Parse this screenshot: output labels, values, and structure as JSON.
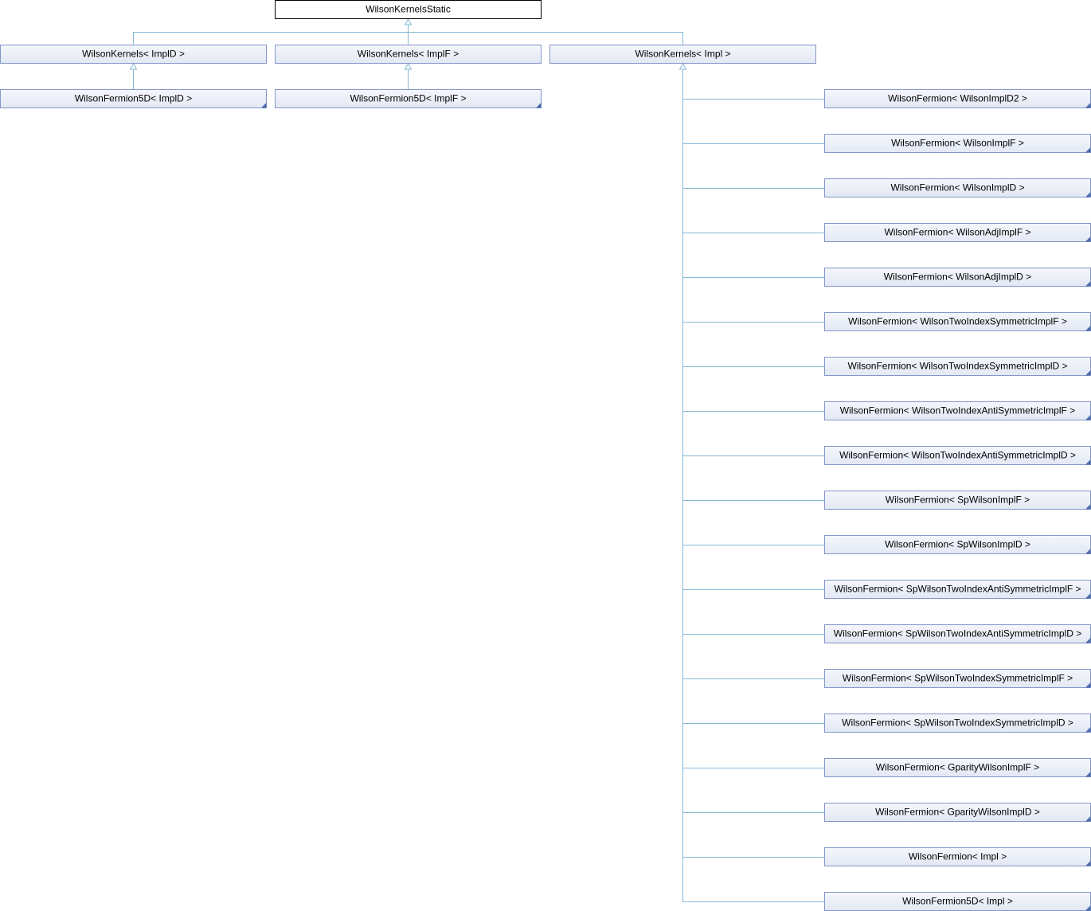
{
  "root": "WilsonKernelsStatic",
  "kernels": [
    "WilsonKernels< ImplD >",
    "WilsonKernels< ImplF >",
    "WilsonKernels< Impl >"
  ],
  "fermion5d": [
    "WilsonFermion5D< ImplD >",
    "WilsonFermion5D< ImplF >"
  ],
  "derived": [
    "WilsonFermion< WilsonImplD2 >",
    "WilsonFermion< WilsonImplF >",
    "WilsonFermion< WilsonImplD >",
    "WilsonFermion< WilsonAdjImplF >",
    "WilsonFermion< WilsonAdjImplD >",
    "WilsonFermion< WilsonTwoIndexSymmetricImplF >",
    "WilsonFermion< WilsonTwoIndexSymmetricImplD >",
    "WilsonFermion< WilsonTwoIndexAntiSymmetricImplF >",
    "WilsonFermion< WilsonTwoIndexAntiSymmetricImplD >",
    "WilsonFermion< SpWilsonImplF >",
    "WilsonFermion< SpWilsonImplD >",
    "WilsonFermion< SpWilsonTwoIndexAntiSymmetricImplF >",
    "WilsonFermion< SpWilsonTwoIndexAntiSymmetricImplD >",
    "WilsonFermion< SpWilsonTwoIndexSymmetricImplF >",
    "WilsonFermion< SpWilsonTwoIndexSymmetricImplD >",
    "WilsonFermion< GparityWilsonImplF >",
    "WilsonFermion< GparityWilsonImplD >",
    "WilsonFermion< Impl >",
    "WilsonFermion5D< Impl >"
  ]
}
